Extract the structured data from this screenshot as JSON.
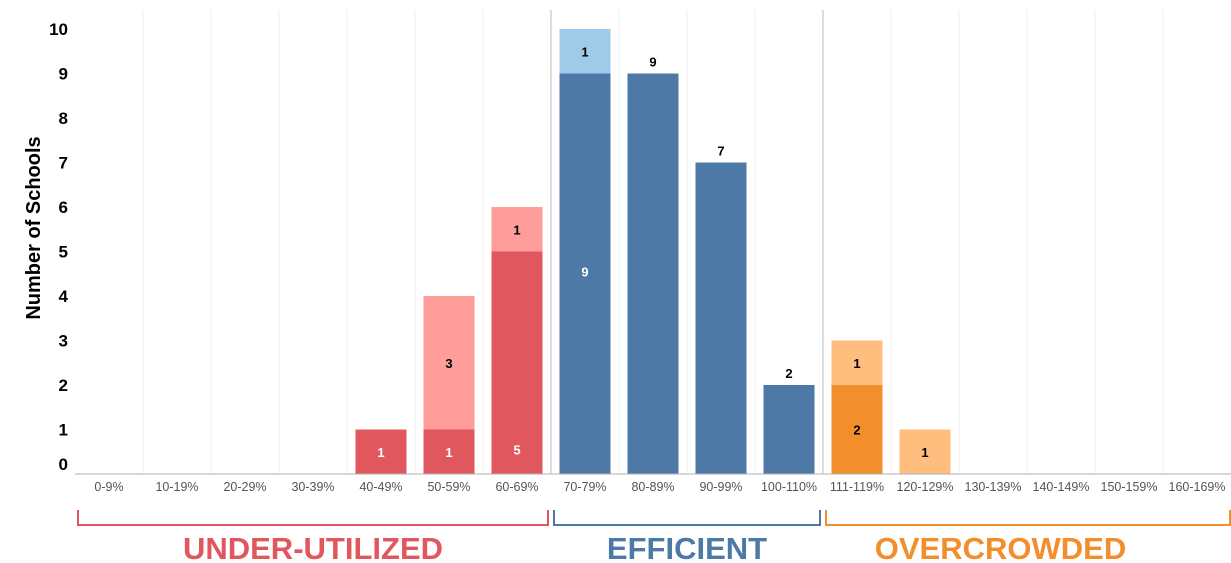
{
  "chart_data": {
    "type": "bar",
    "stacked": true,
    "ylabel": "Number of Schools",
    "xlabel": "",
    "ylim": [
      0,
      10
    ],
    "yticks": [
      "0",
      "1",
      "2",
      "3",
      "4",
      "5",
      "6",
      "7",
      "8",
      "9",
      "10"
    ],
    "grid": "vertical",
    "categories": [
      "0-9%",
      "10-19%",
      "20-29%",
      "30-39%",
      "40-49%",
      "50-59%",
      "60-69%",
      "70-79%",
      "80-89%",
      "90-99%",
      "100-110%",
      "111-119%",
      "120-129%",
      "130-139%",
      "140-149%",
      "150-159%",
      "160-169%"
    ],
    "series": [
      {
        "values": [
          0,
          0,
          0,
          0,
          1,
          1,
          5,
          9,
          9,
          7,
          2,
          2,
          0,
          0,
          0,
          0,
          0
        ],
        "colors": [
          "#e0585e",
          "#e0585e",
          "#e0585e",
          "#e0585e",
          "#e0585e",
          "#e0585e",
          "#e0585e",
          "#4e79a7",
          "#4e79a7",
          "#4e79a7",
          "#4e79a7",
          "#f28e2b",
          "#f28e2b",
          "#f28e2b",
          "#f28e2b",
          "#f28e2b",
          "#f28e2b"
        ]
      },
      {
        "values": [
          0,
          0,
          0,
          0,
          0,
          3,
          1,
          1,
          0,
          0,
          0,
          1,
          1,
          0,
          0,
          0,
          0
        ],
        "colors": [
          "#ff9d9a",
          "#ff9d9a",
          "#ff9d9a",
          "#ff9d9a",
          "#ff9d9a",
          "#ff9d9a",
          "#ff9d9a",
          "#a0cbe8",
          "#a0cbe8",
          "#a0cbe8",
          "#a0cbe8",
          "#ffbe7d",
          "#ffbe7d",
          "#ffbe7d",
          "#ffbe7d",
          "#ffbe7d",
          "#ffbe7d"
        ]
      }
    ],
    "groups": [
      {
        "label": "UNDER-UTILIZED",
        "from": "0-9%",
        "to": "60-69%",
        "color": "#e0585e"
      },
      {
        "label": "EFFICIENT",
        "from": "70-79%",
        "to": "100-110%",
        "color": "#4e79a7"
      },
      {
        "label": "OVERCROWDED",
        "from": "111-119%",
        "to": "160-169%",
        "color": "#f28e2b"
      }
    ]
  }
}
